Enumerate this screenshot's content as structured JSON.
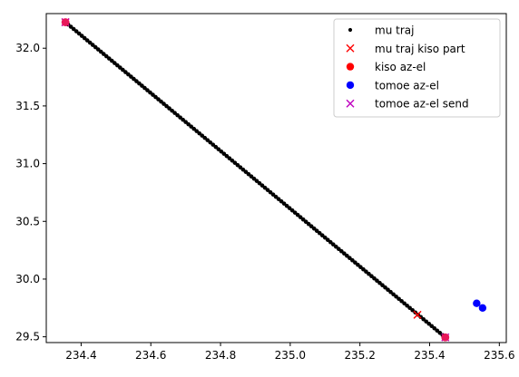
{
  "chart_data": {
    "type": "scatter",
    "xlim": [
      234.3,
      235.62
    ],
    "ylim": [
      29.45,
      32.3
    ],
    "xticks": [
      "234.4",
      "234.6",
      "234.8",
      "235.0",
      "235.2",
      "235.4",
      "235.6"
    ],
    "yticks": [
      "29.5",
      "30.0",
      "30.5",
      "31.0",
      "31.5",
      "32.0"
    ],
    "legend_position": "top-right",
    "series": [
      {
        "name": "mu traj",
        "marker": "dot",
        "color": "#000000",
        "line_start": [
          234.355,
          32.225
        ],
        "line_end": [
          235.445,
          29.495
        ],
        "n_points": 140
      },
      {
        "name": "mu traj kiso part",
        "marker": "x",
        "color": "#ff0000",
        "points": [
          [
            234.355,
            32.225
          ],
          [
            235.365,
            29.69
          ]
        ]
      },
      {
        "name": "kiso az-el",
        "marker": "circle",
        "color": "#ff0000",
        "points": [
          [
            234.355,
            32.225
          ],
          [
            235.445,
            29.495
          ]
        ]
      },
      {
        "name": "tomoe az-el",
        "marker": "circle",
        "color": "#0000ff",
        "points": [
          [
            235.535,
            29.79
          ],
          [
            235.552,
            29.75
          ]
        ]
      },
      {
        "name": "tomoe az-el send",
        "marker": "x",
        "color": "#bf00bf",
        "points": [
          [
            234.355,
            32.225
          ],
          [
            235.445,
            29.495
          ]
        ]
      }
    ],
    "overlay": {
      "color": "#e8185a",
      "points": [
        [
          234.355,
          32.225
        ],
        [
          235.445,
          29.495
        ]
      ]
    }
  }
}
